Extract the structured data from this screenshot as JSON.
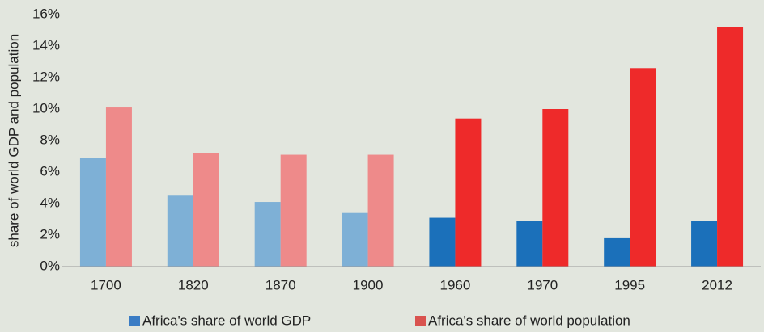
{
  "chart_data": {
    "type": "bar",
    "y_label": "share of world GDP and population",
    "categories": [
      "1700",
      "1820",
      "1870",
      "1900",
      "1960",
      "1970",
      "1995",
      "2012"
    ],
    "series": [
      {
        "name": "Africa's share of world GDP",
        "color": "#3a7cc4",
        "colors": [
          "#7eb0d6",
          "#7eb0d6",
          "#7eb0d6",
          "#7eb0d6",
          "#1b70ba",
          "#1b70ba",
          "#1b70ba",
          "#1b70ba"
        ],
        "values": [
          6.9,
          4.5,
          4.1,
          3.4,
          3.1,
          2.9,
          1.8,
          2.9
        ]
      },
      {
        "name": "Africa's share of world population",
        "color": "#d9534f",
        "colors": [
          "#ee8a8a",
          "#ee8a8a",
          "#ee8a8a",
          "#ee8a8a",
          "#ee2a2a",
          "#ee2a2a",
          "#ee2a2a",
          "#ee2a2a"
        ],
        "values": [
          10.1,
          7.2,
          7.1,
          7.1,
          9.4,
          10.0,
          12.6,
          15.2
        ]
      }
    ],
    "ylim": [
      0,
      16
    ],
    "yticks": [
      {
        "value": 0,
        "label": "0%"
      },
      {
        "value": 2,
        "label": "2%"
      },
      {
        "value": 4,
        "label": "4%"
      },
      {
        "value": 6,
        "label": "6%"
      },
      {
        "value": 8,
        "label": "8%"
      },
      {
        "value": 10,
        "label": "10%"
      },
      {
        "value": 12,
        "label": "12%"
      },
      {
        "value": 14,
        "label": "14%"
      },
      {
        "value": 16,
        "label": "16%"
      }
    ],
    "grid": false,
    "legend": "bottom"
  }
}
